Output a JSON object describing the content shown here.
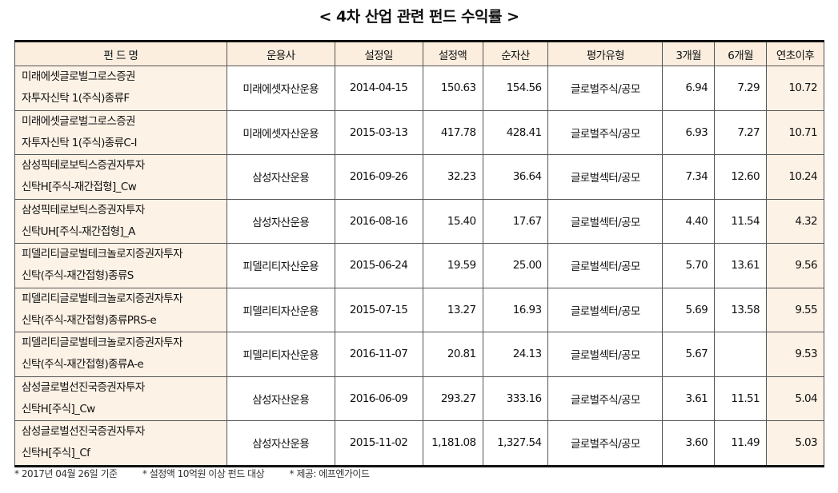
{
  "title": "< 4차 산업 관련 펀드 수익률 >",
  "headers": [
    "펀 드 명",
    "운용사",
    "설정일",
    "설정액",
    "순자산",
    "평가유형",
    "3개월",
    "6개월",
    "연초이후"
  ],
  "rows": [
    {
      "name1": "미래에셋글로벌그로스증권",
      "name2": "자투자신탁 1(주식)종류F",
      "manager": "미래에셋자산운용",
      "date": "2014-04-15",
      "amount": "150.63",
      "net": "154.56",
      "type": "글로벌주식/공모",
      "m3": "6.94",
      "m6": "7.29",
      "ytd": "10.72"
    },
    {
      "name1": "미래에셋글로벌그로스증권",
      "name2": "자투자신탁 1(주식)종류C-I",
      "manager": "미래에셋자산운용",
      "date": "2015-03-13",
      "amount": "417.78",
      "net": "428.41",
      "type": "글로벌주식/공모",
      "m3": "6.93",
      "m6": "7.27",
      "ytd": "10.71"
    },
    {
      "name1": "삼성픽테로보틱스증권자투자",
      "name2": "신탁H[주식-재간접형]_Cw",
      "manager": "삼성자산운용",
      "date": "2016-09-26",
      "amount": "32.23",
      "net": "36.64",
      "type": "글로벌섹터/공모",
      "m3": "7.34",
      "m6": "12.60",
      "ytd": "10.24"
    },
    {
      "name1": "삼성픽테로보틱스증권자투자",
      "name2": "신탁UH[주식-재간접형]_A",
      "manager": "삼성자산운용",
      "date": "2016-08-16",
      "amount": "15.40",
      "net": "17.67",
      "type": "글로벌섹터/공모",
      "m3": "4.40",
      "m6": "11.54",
      "ytd": "4.32"
    },
    {
      "name1": "피델리티글로벌테크놀로지증권자투자",
      "name2": "신탁(주식-재간접형)종류S",
      "manager": "피델리티자산운용",
      "date": "2015-06-24",
      "amount": "19.59",
      "net": "25.00",
      "type": "글로벌섹터/공모",
      "m3": "5.70",
      "m6": "13.61",
      "ytd": "9.56"
    },
    {
      "name1": "피델리티글로벌테크놀로지증권자투자",
      "name2": "신탁(주식-재간접형)종류PRS-e",
      "manager": "피델리티자산운용",
      "date": "2015-07-15",
      "amount": "13.27",
      "net": "16.93",
      "type": "글로벌섹터/공모",
      "m3": "5.69",
      "m6": "13.58",
      "ytd": "9.55"
    },
    {
      "name1": "피델리티글로벌테크놀로지증권자투자",
      "name2": "신탁(주식-재간접형)종류A-e",
      "manager": "피델리티자산운용",
      "date": "2016-11-07",
      "amount": "20.81",
      "net": "24.13",
      "type": "글로벌섹터/공모",
      "m3": "5.67",
      "m6": "",
      "ytd": "9.53"
    },
    {
      "name1": "삼성글로벌선진국증권자투자",
      "name2": "신탁H[주식]_Cw",
      "manager": "삼성자산운용",
      "date": "2016-06-09",
      "amount": "293.27",
      "net": "333.16",
      "type": "글로벌주식/공모",
      "m3": "3.61",
      "m6": "11.51",
      "ytd": "5.04"
    },
    {
      "name1": "삼성글로벌선진국증권자투자",
      "name2": "신탁H[주식]_Cf",
      "manager": "삼성자산운용",
      "date": "2015-11-02",
      "amount": "1,181.08",
      "net": "1,327.54",
      "type": "글로벌주식/공모",
      "m3": "3.60",
      "m6": "11.49",
      "ytd": "5.03"
    }
  ],
  "footnotes": [
    "* 2017년 04월 26일 기준",
    "* 설정액 10억원 이상 펀드 대상",
    "* 제공: 에프엔가이드"
  ]
}
